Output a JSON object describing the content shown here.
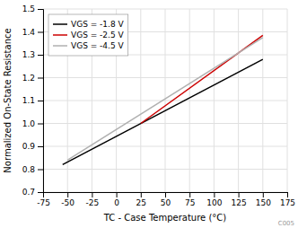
{
  "chart_data": {
    "type": "line",
    "xlabel": "TC - Case Temperature (°C)",
    "ylabel": "Normalized On-State Resistance",
    "xlim": [
      -75,
      175
    ],
    "ylim": [
      0.7,
      1.5
    ],
    "xticks": [
      -75,
      -50,
      -25,
      0,
      25,
      50,
      75,
      100,
      125,
      150,
      175
    ],
    "yticks": [
      0.7,
      0.8,
      0.9,
      {
        "value": 1.0,
        "label": "1.0"
      },
      1.1,
      1.2,
      1.3,
      1.4,
      1.5
    ],
    "series": [
      {
        "name": "VGS = -1.8 V",
        "color": "#000000",
        "x": [
          -55,
          150
        ],
        "values": [
          0.82,
          1.28
        ]
      },
      {
        "name": "VGS = -2.5 V",
        "color": "#cc0000",
        "x": [
          25,
          150
        ],
        "values": [
          1.0,
          1.385
        ]
      },
      {
        "name": "VGS = -4.5 V",
        "color": "#b0b0b0",
        "x": [
          -50,
          150
        ],
        "values": [
          0.84,
          1.375
        ]
      }
    ],
    "annotations": [
      "C005"
    ],
    "grid": true,
    "legend": "upper left"
  }
}
